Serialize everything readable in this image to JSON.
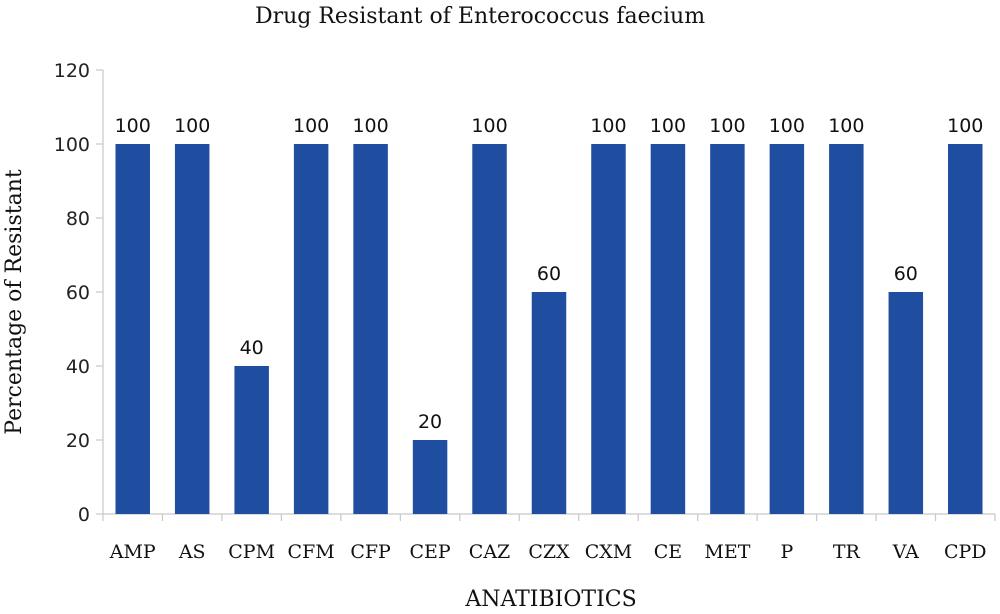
{
  "chart_data": {
    "type": "bar",
    "title": "Drug Resistant of Enterococcus faecium",
    "xlabel": "ANATIBIOTICS",
    "ylabel": "Percentage of Resistant",
    "categories": [
      "AMP",
      "AS",
      "CPM",
      "CFM",
      "CFP",
      "CEP",
      "CAZ",
      "CZX",
      "CXM",
      "CE",
      "MET",
      "P",
      "TR",
      "VA",
      "CPD"
    ],
    "values": [
      100,
      100,
      40,
      100,
      100,
      20,
      100,
      60,
      100,
      100,
      100,
      100,
      100,
      60,
      100
    ],
    "ylim": [
      0,
      120
    ],
    "yticks": [
      0,
      20,
      40,
      60,
      80,
      100,
      120
    ],
    "grid": false,
    "data_labels": true,
    "bar_color": "#1f4ea1"
  }
}
